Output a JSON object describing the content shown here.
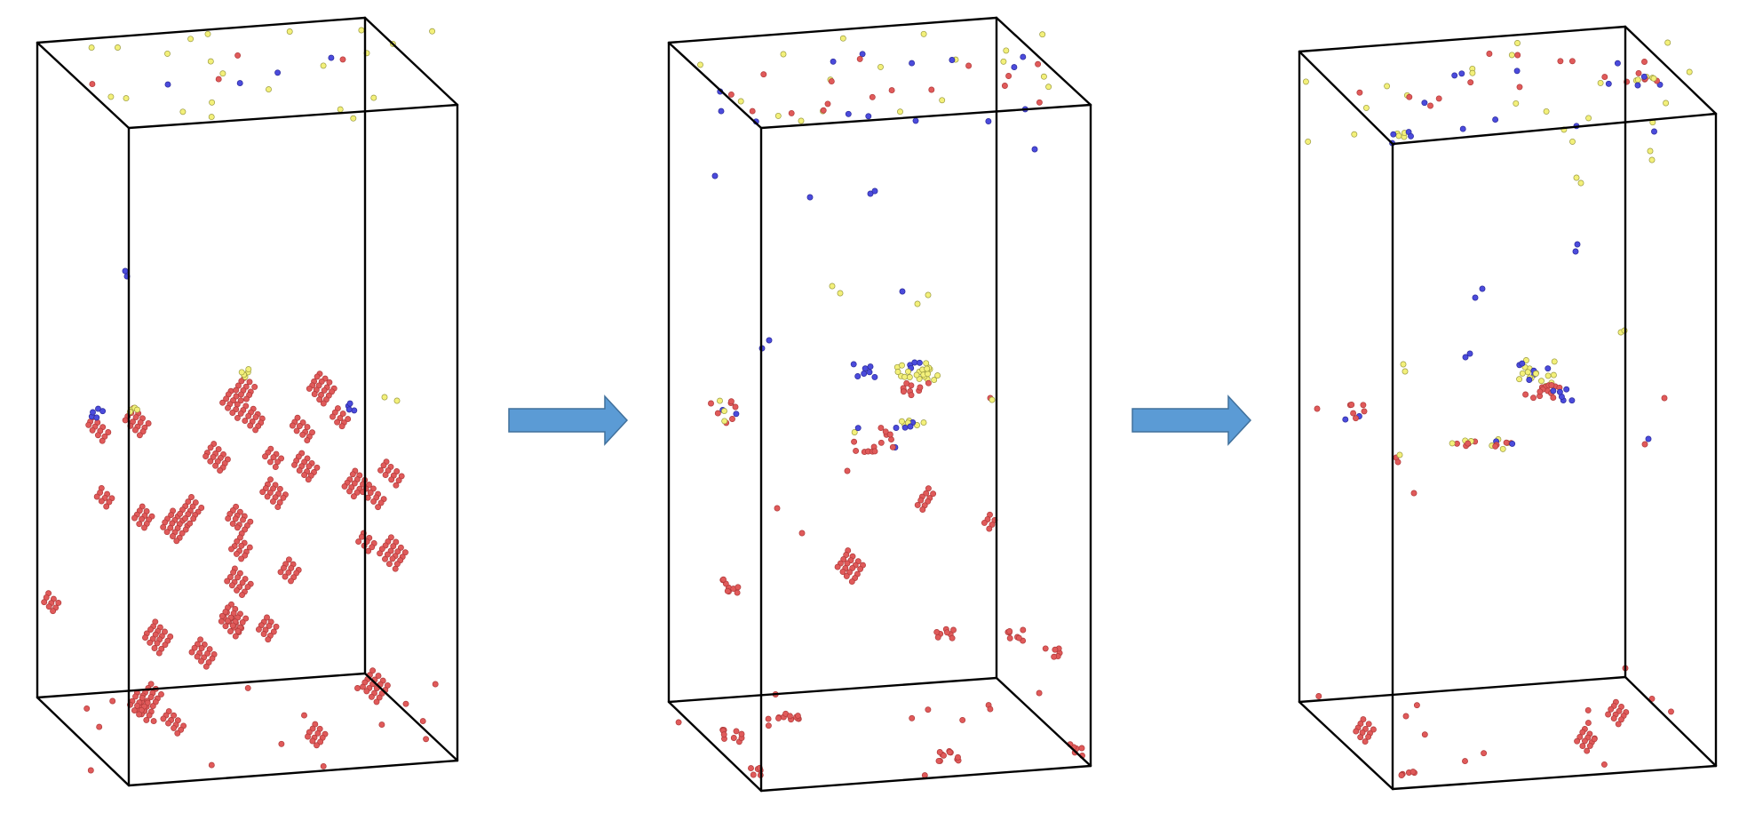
{
  "figure": {
    "panel_count": 3,
    "arrow_count": 2,
    "colors": {
      "box_edge": "#000000",
      "red_atom": "#e05a5a",
      "red_atom_stroke": "#b03a3a",
      "blue_atom": "#4b4bdc",
      "blue_atom_stroke": "#2a2a9a",
      "yellow_atom": "#f3f07a",
      "yellow_atom_stroke": "#9a9a40",
      "arrow_fill": "#5b9bd5",
      "arrow_stroke": "#41719c",
      "background": "#ffffff"
    }
  }
}
